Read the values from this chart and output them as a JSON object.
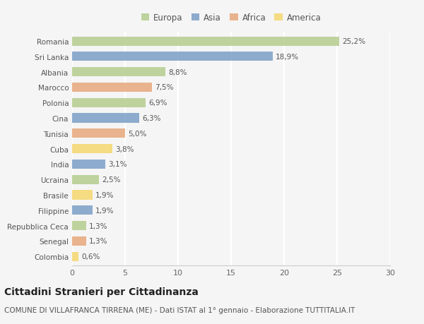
{
  "categories": [
    "Romania",
    "Sri Lanka",
    "Albania",
    "Marocco",
    "Polonia",
    "Cina",
    "Tunisia",
    "Cuba",
    "India",
    "Ucraina",
    "Brasile",
    "Filippine",
    "Repubblica Ceca",
    "Senegal",
    "Colombia"
  ],
  "values": [
    25.2,
    18.9,
    8.8,
    7.5,
    6.9,
    6.3,
    5.0,
    3.8,
    3.1,
    2.5,
    1.9,
    1.9,
    1.3,
    1.3,
    0.6
  ],
  "labels": [
    "25,2%",
    "18,9%",
    "8,8%",
    "7,5%",
    "6,9%",
    "6,3%",
    "5,0%",
    "3,8%",
    "3,1%",
    "2,5%",
    "1,9%",
    "1,9%",
    "1,3%",
    "1,3%",
    "0,6%"
  ],
  "continents": [
    "Europa",
    "Asia",
    "Europa",
    "Africa",
    "Europa",
    "Asia",
    "Africa",
    "America",
    "Asia",
    "Europa",
    "America",
    "Asia",
    "Europa",
    "Africa",
    "America"
  ],
  "continent_colors": {
    "Europa": "#b5cc8e",
    "Asia": "#7b9fc7",
    "Africa": "#e8a87c",
    "America": "#f5d76e"
  },
  "legend_order": [
    "Europa",
    "Asia",
    "Africa",
    "America"
  ],
  "xlim": [
    0,
    30
  ],
  "xticks": [
    0,
    5,
    10,
    15,
    20,
    25,
    30
  ],
  "background_color": "#f5f5f5",
  "grid_color": "#ffffff",
  "title": "Cittadini Stranieri per Cittadinanza",
  "subtitle": "COMUNE DI VILLAFRANCA TIRRENA (ME) - Dati ISTAT al 1° gennaio - Elaborazione TUTTITALIA.IT",
  "title_fontsize": 10,
  "subtitle_fontsize": 7.5,
  "bar_height": 0.6,
  "label_fontsize": 7.5,
  "ytick_fontsize": 7.5,
  "xtick_fontsize": 8,
  "legend_fontsize": 8.5
}
